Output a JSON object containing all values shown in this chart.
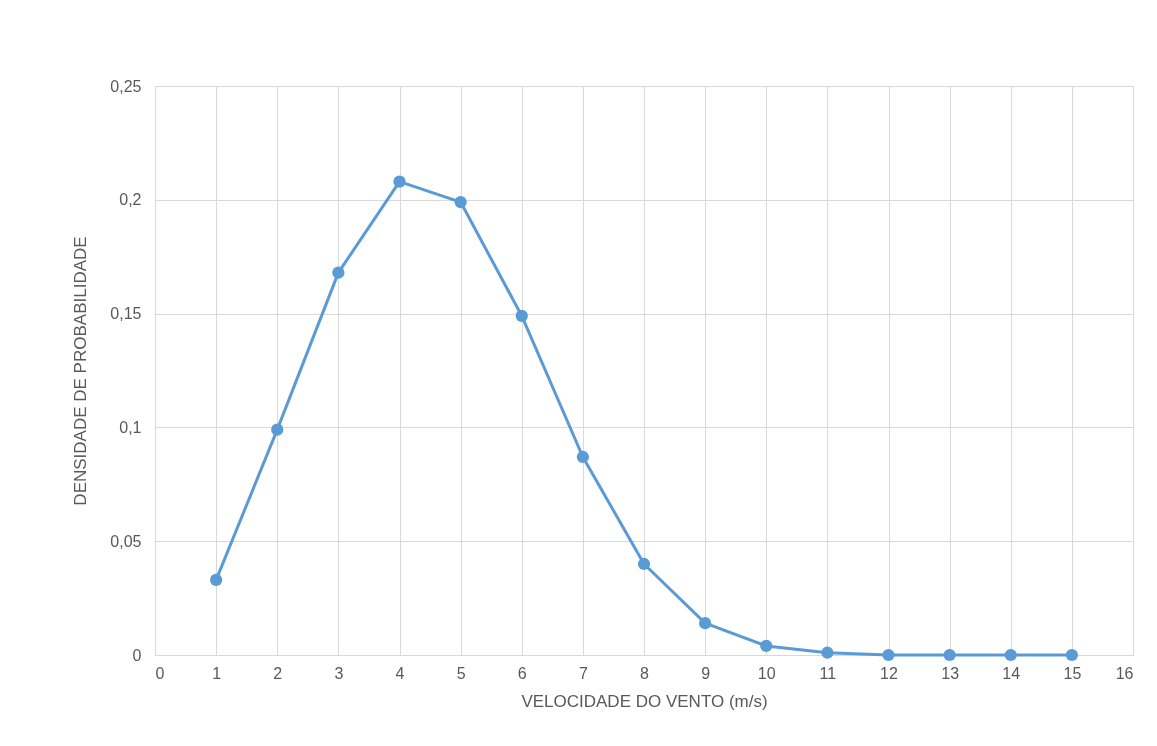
{
  "chart_data": {
    "type": "line",
    "xlabel": "VELOCIDADE DO VENTO (m/s)",
    "ylabel": "DENSIDADE DE PROBABILIDADE",
    "x": [
      1,
      2,
      3,
      4,
      5,
      6,
      7,
      8,
      9,
      10,
      11,
      12,
      13,
      14,
      15
    ],
    "series": [
      {
        "color": "#5b9bd5",
        "values": [
          0.033,
          0.099,
          0.168,
          0.208,
          0.199,
          0.149,
          0.087,
          0.04,
          0.014,
          0.004,
          0.001,
          0.0,
          0.0,
          0.0,
          0.0
        ]
      }
    ],
    "xlim": [
      0,
      16
    ],
    "xticks": [
      0,
      1,
      2,
      3,
      4,
      5,
      6,
      7,
      8,
      9,
      10,
      11,
      12,
      13,
      14,
      15,
      16
    ],
    "ylim": [
      0,
      0.25
    ],
    "yticks": [
      0,
      {
        "value": 0.05,
        "label": "0,05"
      },
      {
        "value": 0.1,
        "label": "0,1"
      },
      {
        "value": 0.15,
        "label": "0,15"
      },
      {
        "value": 0.2,
        "label": "0,2"
      },
      {
        "value": 0.25,
        "label": "0,25"
      }
    ],
    "grid": true,
    "marker": "circle",
    "line_style": "solid"
  }
}
